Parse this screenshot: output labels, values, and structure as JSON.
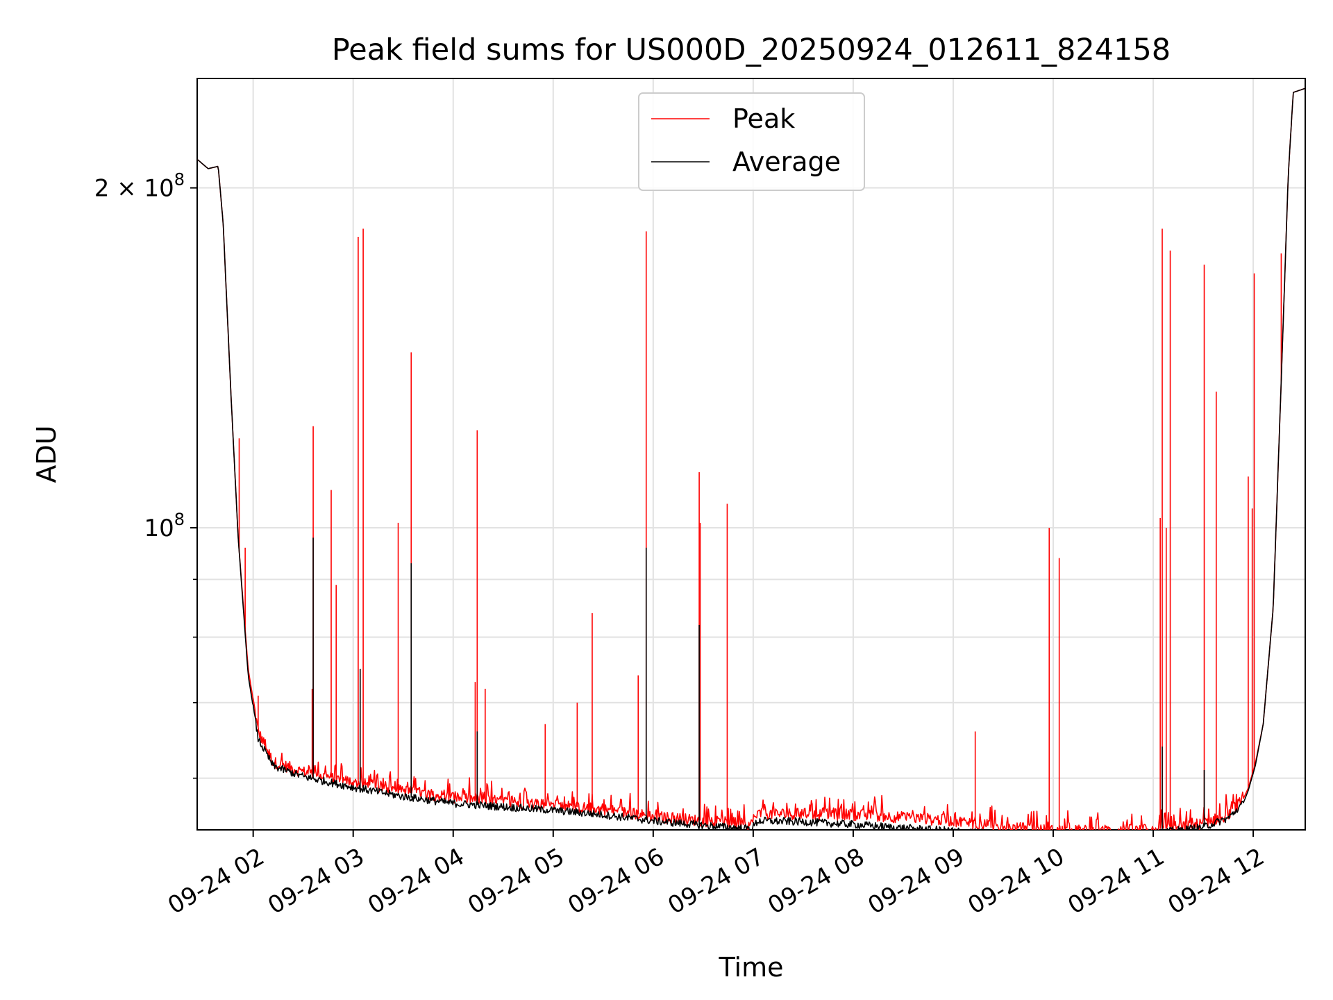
{
  "chart_data": {
    "type": "line",
    "title": "Peak field sums for US000D_20250924_012611_824158",
    "xlabel": "Time",
    "ylabel": "ADU",
    "yscale": "log",
    "x_unit": "hours since 09-24 00:00",
    "xlim": [
      1.44,
      12.52
    ],
    "ylim": [
      54000000,
      250000000
    ],
    "x_ticks": [
      {
        "value": 2,
        "label": "09-24 02"
      },
      {
        "value": 3,
        "label": "09-24 03"
      },
      {
        "value": 4,
        "label": "09-24 04"
      },
      {
        "value": 5,
        "label": "09-24 05"
      },
      {
        "value": 6,
        "label": "09-24 06"
      },
      {
        "value": 7,
        "label": "09-24 07"
      },
      {
        "value": 8,
        "label": "09-24 08"
      },
      {
        "value": 9,
        "label": "09-24 09"
      },
      {
        "value": 10,
        "label": "09-24 10"
      },
      {
        "value": 11,
        "label": "09-24 11"
      },
      {
        "value": 12,
        "label": "09-24 12"
      }
    ],
    "y_major_ticks": [
      {
        "value": 100000000,
        "base": "10",
        "exp": "8",
        "mult": ""
      },
      {
        "value": 200000000,
        "base": "10",
        "exp": "8",
        "mult": "2 × "
      }
    ],
    "y_minor_ticks": [
      60000000,
      70000000,
      80000000,
      90000000
    ],
    "legend": {
      "placement": "top-center",
      "entries": [
        "Peak",
        "Average"
      ]
    },
    "series": [
      {
        "name": "Peak",
        "color": "#ff0000",
        "baseline": {
          "x": [
            1.44,
            1.55,
            1.6,
            1.65,
            1.7,
            1.78,
            1.85,
            1.95,
            2.05,
            2.2,
            2.5,
            3.0,
            3.5,
            4.0,
            4.5,
            5.0,
            5.5,
            6.0,
            6.5,
            6.98,
            7.05,
            7.5,
            8.0,
            8.5,
            9.0,
            9.5,
            10.0,
            10.5,
            11.0,
            11.5,
            11.75,
            11.9,
            11.95,
            12.02,
            12.1,
            12.2,
            12.28,
            12.35,
            12.4,
            12.52
          ],
          "y": [
            212000000,
            208000000,
            208500000,
            209000000,
            186000000,
            130000000,
            98000000,
            75000000,
            66000000,
            62000000,
            60800000,
            59500000,
            58500000,
            57700000,
            57200000,
            56800000,
            56300000,
            55500000,
            55000000,
            54600000,
            55800000,
            55800000,
            55700000,
            55400000,
            55000000,
            54300000,
            53900000,
            53900000,
            54000000,
            54700000,
            55700000,
            57500000,
            58800000,
            61800000,
            67000000,
            85000000,
            135000000,
            205000000,
            243000000,
            245000000
          ]
        },
        "spikes": [
          {
            "x": 1.86,
            "y": 120000000
          },
          {
            "x": 1.92,
            "y": 96000000
          },
          {
            "x": 2.05,
            "y": 71000000
          },
          {
            "x": 2.59,
            "y": 72000000
          },
          {
            "x": 2.6,
            "y": 123000000
          },
          {
            "x": 2.78,
            "y": 108000000
          },
          {
            "x": 2.83,
            "y": 89000000
          },
          {
            "x": 3.05,
            "y": 181000000
          },
          {
            "x": 3.1,
            "y": 184000000
          },
          {
            "x": 3.45,
            "y": 101000000
          },
          {
            "x": 3.58,
            "y": 143000000
          },
          {
            "x": 4.22,
            "y": 73000000
          },
          {
            "x": 4.24,
            "y": 122000000
          },
          {
            "x": 4.32,
            "y": 72000000
          },
          {
            "x": 4.92,
            "y": 67000000
          },
          {
            "x": 5.24,
            "y": 70000000
          },
          {
            "x": 5.39,
            "y": 84000000
          },
          {
            "x": 5.85,
            "y": 74000000
          },
          {
            "x": 5.93,
            "y": 183000000
          },
          {
            "x": 6.46,
            "y": 112000000
          },
          {
            "x": 6.47,
            "y": 101000000
          },
          {
            "x": 6.74,
            "y": 105000000
          },
          {
            "x": 9.22,
            "y": 66000000
          },
          {
            "x": 9.96,
            "y": 100000000
          },
          {
            "x": 10.06,
            "y": 94000000
          },
          {
            "x": 11.07,
            "y": 102000000
          },
          {
            "x": 11.09,
            "y": 184000000
          },
          {
            "x": 11.13,
            "y": 100000000
          },
          {
            "x": 11.17,
            "y": 176000000
          },
          {
            "x": 11.51,
            "y": 171000000
          },
          {
            "x": 11.63,
            "y": 132000000
          },
          {
            "x": 11.95,
            "y": 111000000
          },
          {
            "x": 11.99,
            "y": 104000000
          },
          {
            "x": 12.01,
            "y": 168000000
          },
          {
            "x": 12.28,
            "y": 175000000
          }
        ]
      },
      {
        "name": "Average",
        "color": "#000000",
        "baseline": {
          "x": [
            1.44,
            1.55,
            1.6,
            1.65,
            1.7,
            1.78,
            1.85,
            1.95,
            2.05,
            2.2,
            2.5,
            3.0,
            3.5,
            4.0,
            4.5,
            5.0,
            5.5,
            6.0,
            6.5,
            6.98,
            7.05,
            7.5,
            8.0,
            8.5,
            9.0,
            9.5,
            10.0,
            10.5,
            11.0,
            11.5,
            11.75,
            11.9,
            11.95,
            12.02,
            12.1,
            12.2,
            12.28,
            12.35,
            12.4,
            12.52
          ],
          "y": [
            212000000,
            208000000,
            208500000,
            209000000,
            186000000,
            130000000,
            98000000,
            74000000,
            65000000,
            61500000,
            60200000,
            58900000,
            57800000,
            57000000,
            56600000,
            56200000,
            55700000,
            55000000,
            54500000,
            54100000,
            55000000,
            54900000,
            54600000,
            54200000,
            53900000,
            53500000,
            53300000,
            53300000,
            53600000,
            54300000,
            55300000,
            57000000,
            58500000,
            61500000,
            67000000,
            85000000,
            135000000,
            205000000,
            243000000,
            245000000
          ]
        },
        "spikes": [
          {
            "x": 2.6,
            "y": 98000000
          },
          {
            "x": 3.07,
            "y": 75000000
          },
          {
            "x": 3.58,
            "y": 93000000
          },
          {
            "x": 4.24,
            "y": 66000000
          },
          {
            "x": 5.93,
            "y": 96000000
          },
          {
            "x": 6.46,
            "y": 82000000
          },
          {
            "x": 11.09,
            "y": 64000000
          },
          {
            "x": 11.51,
            "y": 61000000
          }
        ]
      }
    ]
  }
}
